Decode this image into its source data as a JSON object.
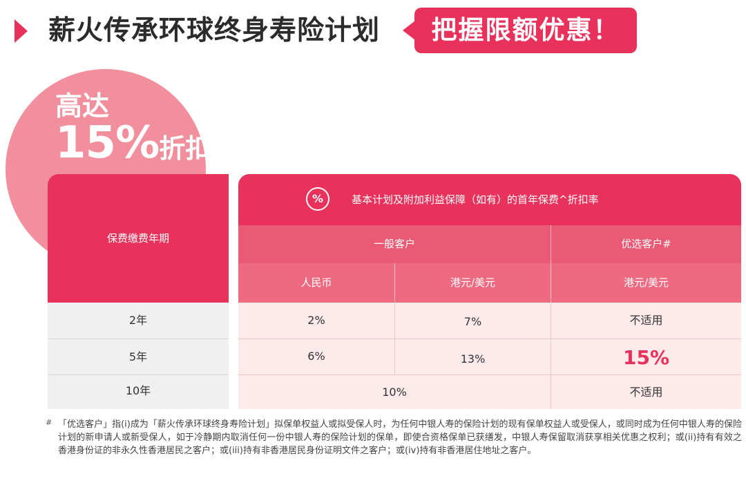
{
  "header": {
    "title": "薪火传承环球终身寿险计划",
    "promo": "把握限额优惠！"
  },
  "discount": {
    "line1": "高达",
    "percent": "15%",
    "word": "折扣"
  },
  "table": {
    "period_header": "保费缴费年期",
    "title_icon": "%",
    "title": "基本计划及附加利益保障（如有）的首年保费^折扣率",
    "groups": {
      "general": "一般客户",
      "preferred": "优选客户#"
    },
    "currencies": {
      "rmb": "人民币",
      "hkd_usd": "港元/美元",
      "pref_hkd_usd": "港元/美元"
    },
    "rows": [
      {
        "period": "2年",
        "rmb": "2%",
        "hkd": "7%",
        "pref": "不适用"
      },
      {
        "period": "5年",
        "rmb": "6%",
        "hkd": "13%",
        "pref": "15%"
      },
      {
        "period": "10年",
        "merged": "10%",
        "pref": "不适用"
      }
    ]
  },
  "footnote": {
    "mark": "#",
    "text": "「优选客户」指(i)成为「薪火传承环球终身寿险计划」拟保单权益人或拟受保人时，为任何中银人寿的保险计划的现有保单权益人或受保人，或同时成为任何中银人寿的保险计划的新申请人或新受保人，如于冷静期内取消任何一份中银人寿的保险计划的保单，即使合资格保单已获缮发，中银人寿保留取消获享相关优惠之权利；或(ii)持有有效之香港身份证的非永久性香港居民之客户；或(iii)持有非香港居民身份证明文件之客户；或(iv)持有非香港居住地址之客户。"
  },
  "colors": {
    "accent": "#e8315b",
    "circle": "#f28f9c",
    "light_row": "#fdeaea"
  }
}
